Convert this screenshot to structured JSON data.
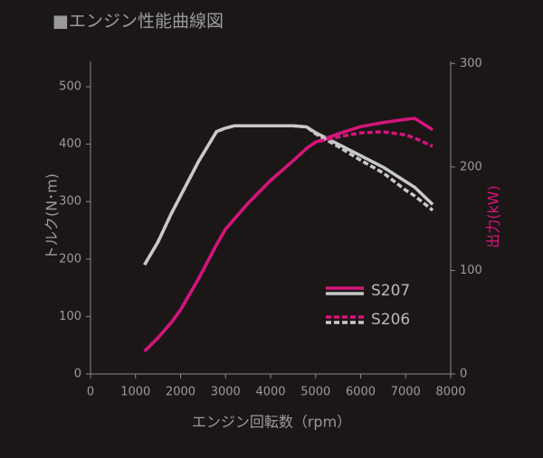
{
  "chart_data": {
    "type": "line",
    "title": "■エンジン性能曲線図",
    "x_label": "エンジン回転数（rpm）",
    "y_label": "トルク(N･m)",
    "y2_label": "出力(kW)",
    "torque_color": "#c8c8c8",
    "power_color": "#d4157a",
    "x": [
      1200,
      1500,
      1800,
      2000,
      2400,
      2800,
      3000,
      3200,
      3500,
      4000,
      4500,
      4800,
      5000,
      5500,
      6000,
      6500,
      7000,
      7200,
      7600
    ],
    "series": [
      {
        "name": "S207",
        "dashed": false,
        "torque": [
          190,
          230,
          280,
          310,
          370,
          422,
          428,
          432,
          432,
          432,
          432,
          430,
          420,
          400,
          380,
          360,
          335,
          325,
          295
        ],
        "power": [
          22,
          35,
          50,
          62,
          92,
          125,
          140,
          150,
          165,
          187,
          206,
          218,
          224,
          232,
          239,
          243,
          246,
          247,
          236
        ]
      },
      {
        "name": "S206",
        "dashed": true,
        "torque": [
          190,
          230,
          280,
          310,
          370,
          422,
          428,
          432,
          432,
          432,
          432,
          430,
          418,
          396,
          372,
          350,
          320,
          310,
          285
        ],
        "power": [
          22,
          35,
          50,
          62,
          92,
          125,
          140,
          150,
          165,
          187,
          206,
          218,
          224,
          229,
          233,
          234,
          231,
          228,
          220
        ]
      }
    ],
    "xlim": [
      0,
      8000
    ],
    "xticks": [
      0,
      1000,
      2000,
      3000,
      4000,
      5000,
      6000,
      7000,
      8000
    ],
    "ylim": [
      0,
      544
    ],
    "yticks": [
      0,
      100,
      200,
      300,
      400,
      500
    ],
    "y2lim": [
      0,
      302
    ],
    "y2ticks": [
      0,
      100,
      200,
      300
    ]
  }
}
